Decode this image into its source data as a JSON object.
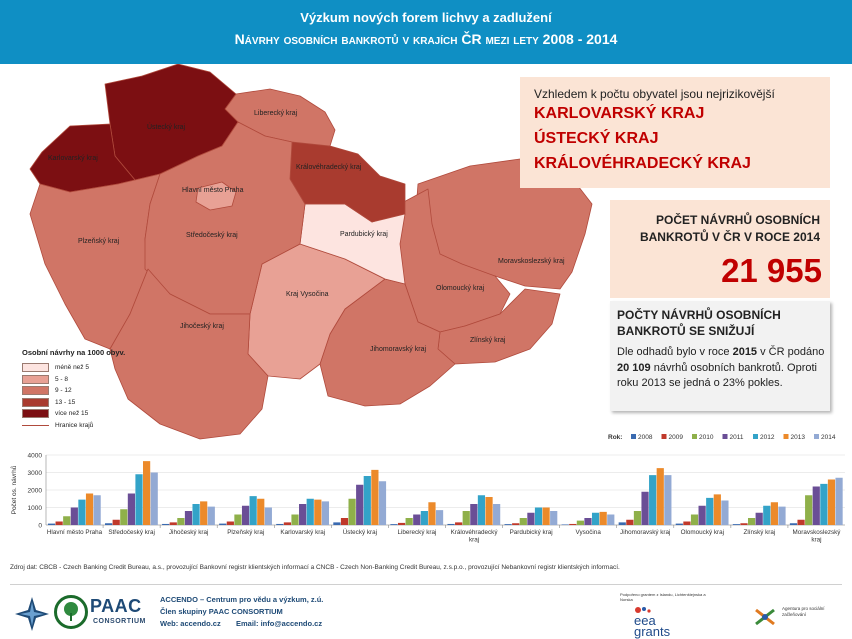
{
  "header": {
    "title_line1": "Výzkum nových forem lichvy a zadlužení",
    "title_line2": "Návrhy osobních bankrotů v krajích ČR mezi lety 2008 - 2014"
  },
  "map": {
    "colors": {
      "lvl1": "#fde4e0",
      "lvl2": "#e8a195",
      "lvl3": "#d07566",
      "lvl4": "#a93b2f",
      "lvl5": "#7c0f12",
      "border": "#b04a3c"
    },
    "regions": [
      {
        "label": "Hlavní město Praha",
        "level": "lvl2"
      },
      {
        "label": "Středočeský kraj",
        "level": "lvl3"
      },
      {
        "label": "Jihočeský kraj",
        "level": "lvl3"
      },
      {
        "label": "Plzeňský kraj",
        "level": "lvl3"
      },
      {
        "label": "Karlovarský kraj",
        "level": "lvl5"
      },
      {
        "label": "Ústecký kraj",
        "level": "lvl5"
      },
      {
        "label": "Liberecký kraj",
        "level": "lvl3"
      },
      {
        "label": "Královéhradecký kraj",
        "level": "lvl4"
      },
      {
        "label": "Pardubický kraj",
        "level": "lvl1"
      },
      {
        "label": "Kraj Vysočina",
        "level": "lvl2"
      },
      {
        "label": "Jihomoravský kraj",
        "level": "lvl3"
      },
      {
        "label": "Olomoucký kraj",
        "level": "lvl3"
      },
      {
        "label": "Zlínský kraj",
        "level": "lvl3"
      },
      {
        "label": "Moravskoslezský kraj",
        "level": "lvl3"
      }
    ],
    "legend": {
      "title": "Osobní návrhy na 1000 obyv.",
      "items": [
        {
          "label": "méně než 5",
          "color": "#fde4e0"
        },
        {
          "label": "5 - 8",
          "color": "#e8a195"
        },
        {
          "label": "9 - 12",
          "color": "#d07566"
        },
        {
          "label": "13 - 15",
          "color": "#a93b2f"
        },
        {
          "label": "více než 15",
          "color": "#7c0f12"
        }
      ],
      "border_label": "Hranice krajů"
    }
  },
  "riskiest": {
    "intro": "Vzhledem k počtu obyvatel jsou nejrizikovější",
    "regions": [
      "KARLOVARSKÝ KRAJ",
      "ÚSTECKÝ KRAJ",
      "KRÁLOVÉHRADECKÝ KRAJ"
    ]
  },
  "total": {
    "heading_line1": "POČET NÁVRHŮ OSOBNÍCH",
    "heading_line2": "BANKROTŮ V ČR V ROCE 2014",
    "value": "21 955"
  },
  "decline": {
    "heading_line1": "POČTY NÁVRHŮ OSOBNÍCH",
    "heading_line2": "BANKROTŮ SE SNIŽUJÍ",
    "t1": "Dle odhadů bylo v roce ",
    "y": "2015",
    "t2": " v ČR podáno ",
    "n": "20 109",
    "t3": " návrhů osobních bankrotů. Oproti roku 2013 se jedná o 23% pokles."
  },
  "chart_data": {
    "type": "bar",
    "ylabel": "Počet os. návrhů",
    "legend_title": "Rok:",
    "ylim": [
      0,
      4000
    ],
    "yticks": [
      "0",
      "1000",
      "2000",
      "3000",
      "4000"
    ],
    "categories": [
      "Hlavní město Praha",
      "Středočeský kraj",
      "Jihočeský kraj",
      "Plzeňský kraj",
      "Karlovarský kraj",
      "Ústecký kraj",
      "Liberecký kraj",
      "Královéhradecký kraj",
      "Pardubický kraj",
      "Vysočina",
      "Jihomoravský kraj",
      "Olomoucký kraj",
      "Zlínský kraj",
      "Moravskoslezský kraj"
    ],
    "series": [
      {
        "name": "2008",
        "color": "#3a6ab0",
        "values": [
          80,
          100,
          60,
          80,
          60,
          150,
          50,
          60,
          50,
          30,
          150,
          80,
          50,
          100
        ]
      },
      {
        "name": "2009",
        "color": "#c0392b",
        "values": [
          200,
          300,
          150,
          200,
          150,
          400,
          120,
          150,
          100,
          60,
          300,
          200,
          100,
          300
        ]
      },
      {
        "name": "2010",
        "color": "#8fb04a",
        "values": [
          500,
          900,
          400,
          600,
          600,
          1500,
          400,
          800,
          400,
          250,
          800,
          600,
          400,
          1700
        ]
      },
      {
        "name": "2011",
        "color": "#6a4e96",
        "values": [
          1000,
          1800,
          800,
          1100,
          1200,
          2300,
          600,
          1200,
          700,
          400,
          1900,
          1100,
          700,
          2200
        ]
      },
      {
        "name": "2012",
        "color": "#33a3c8",
        "values": [
          1450,
          2900,
          1200,
          1650,
          1500,
          2800,
          800,
          1700,
          1000,
          700,
          2850,
          1550,
          1100,
          2350
        ]
      },
      {
        "name": "2013",
        "color": "#ec8a2a",
        "values": [
          1800,
          3650,
          1350,
          1500,
          1450,
          3150,
          1300,
          1600,
          1000,
          750,
          3250,
          1750,
          1300,
          2600
        ]
      },
      {
        "name": "2014",
        "color": "#93aad4",
        "values": [
          1700,
          3000,
          1050,
          1000,
          1350,
          2500,
          850,
          1200,
          800,
          600,
          2850,
          1400,
          1050,
          2700
        ]
      }
    ]
  },
  "source": "Zdroj dat: CBCB - Czech Banking Credit Bureau, a.s., provozující Bankovní registr klientských informací a CNCB - Czech Non-Banking Credit Bureau, z.s.p.o., provozující Nebankovní registr klientských informací.",
  "footer": {
    "logo_text": "PAAC",
    "logo_sub": "CONSORTIUM",
    "org_line1": "ACCENDO – Centrum pro vědu a výzkum, z.ú.",
    "org_line2": "Člen skupiny PAAC CONSORTIUM",
    "web_label": "Web: accendo.cz",
    "email_label": "Email: info@accendo.cz",
    "funding": "Podpořeno grantem z Islandu, Lichtenštejnska a Norska",
    "eea_line1": "eea",
    "eea_line2": "grants",
    "agency": "Agentura pro sociální začleňování"
  }
}
